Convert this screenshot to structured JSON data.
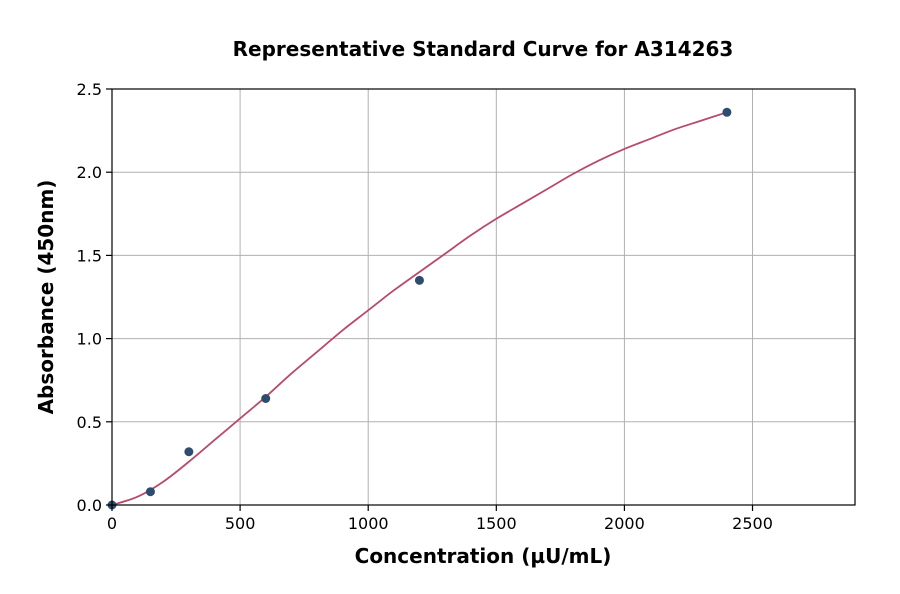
{
  "chart_data": {
    "type": "scatter",
    "title": "Representative Standard Curve for A314263",
    "xlabel": "Concentration (µU/mL)",
    "ylabel": "Absorbance (450nm)",
    "xlim": [
      0,
      2900
    ],
    "ylim": [
      0,
      2.5
    ],
    "xticks": [
      0,
      500,
      1000,
      1500,
      2000,
      2500
    ],
    "yticks": [
      0.0,
      0.5,
      1.0,
      1.5,
      2.0,
      2.5
    ],
    "xtick_labels": [
      "0",
      "500",
      "1000",
      "1500",
      "2000",
      "2500"
    ],
    "ytick_labels": [
      "0.0",
      "0.5",
      "1.0",
      "1.5",
      "2.0",
      "2.5"
    ],
    "grid": true,
    "series": [
      {
        "type": "scatter",
        "x": [
          0,
          150,
          300,
          600,
          1200,
          2400
        ],
        "y": [
          0.0,
          0.08,
          0.32,
          0.64,
          1.35,
          2.36
        ]
      },
      {
        "type": "line",
        "fit": true,
        "x": [
          0,
          100,
          200,
          300,
          400,
          500,
          600,
          700,
          800,
          900,
          1000,
          1100,
          1200,
          1300,
          1400,
          1500,
          1600,
          1700,
          1800,
          1900,
          2000,
          2100,
          2200,
          2300,
          2400
        ],
        "y": [
          0.0,
          0.05,
          0.14,
          0.26,
          0.39,
          0.52,
          0.65,
          0.79,
          0.92,
          1.05,
          1.17,
          1.29,
          1.4,
          1.51,
          1.62,
          1.72,
          1.81,
          1.9,
          1.99,
          2.07,
          2.14,
          2.2,
          2.26,
          2.31,
          2.36
        ]
      }
    ],
    "colors": {
      "points": "#2f4b6e",
      "curve": "#b84a6b"
    }
  }
}
